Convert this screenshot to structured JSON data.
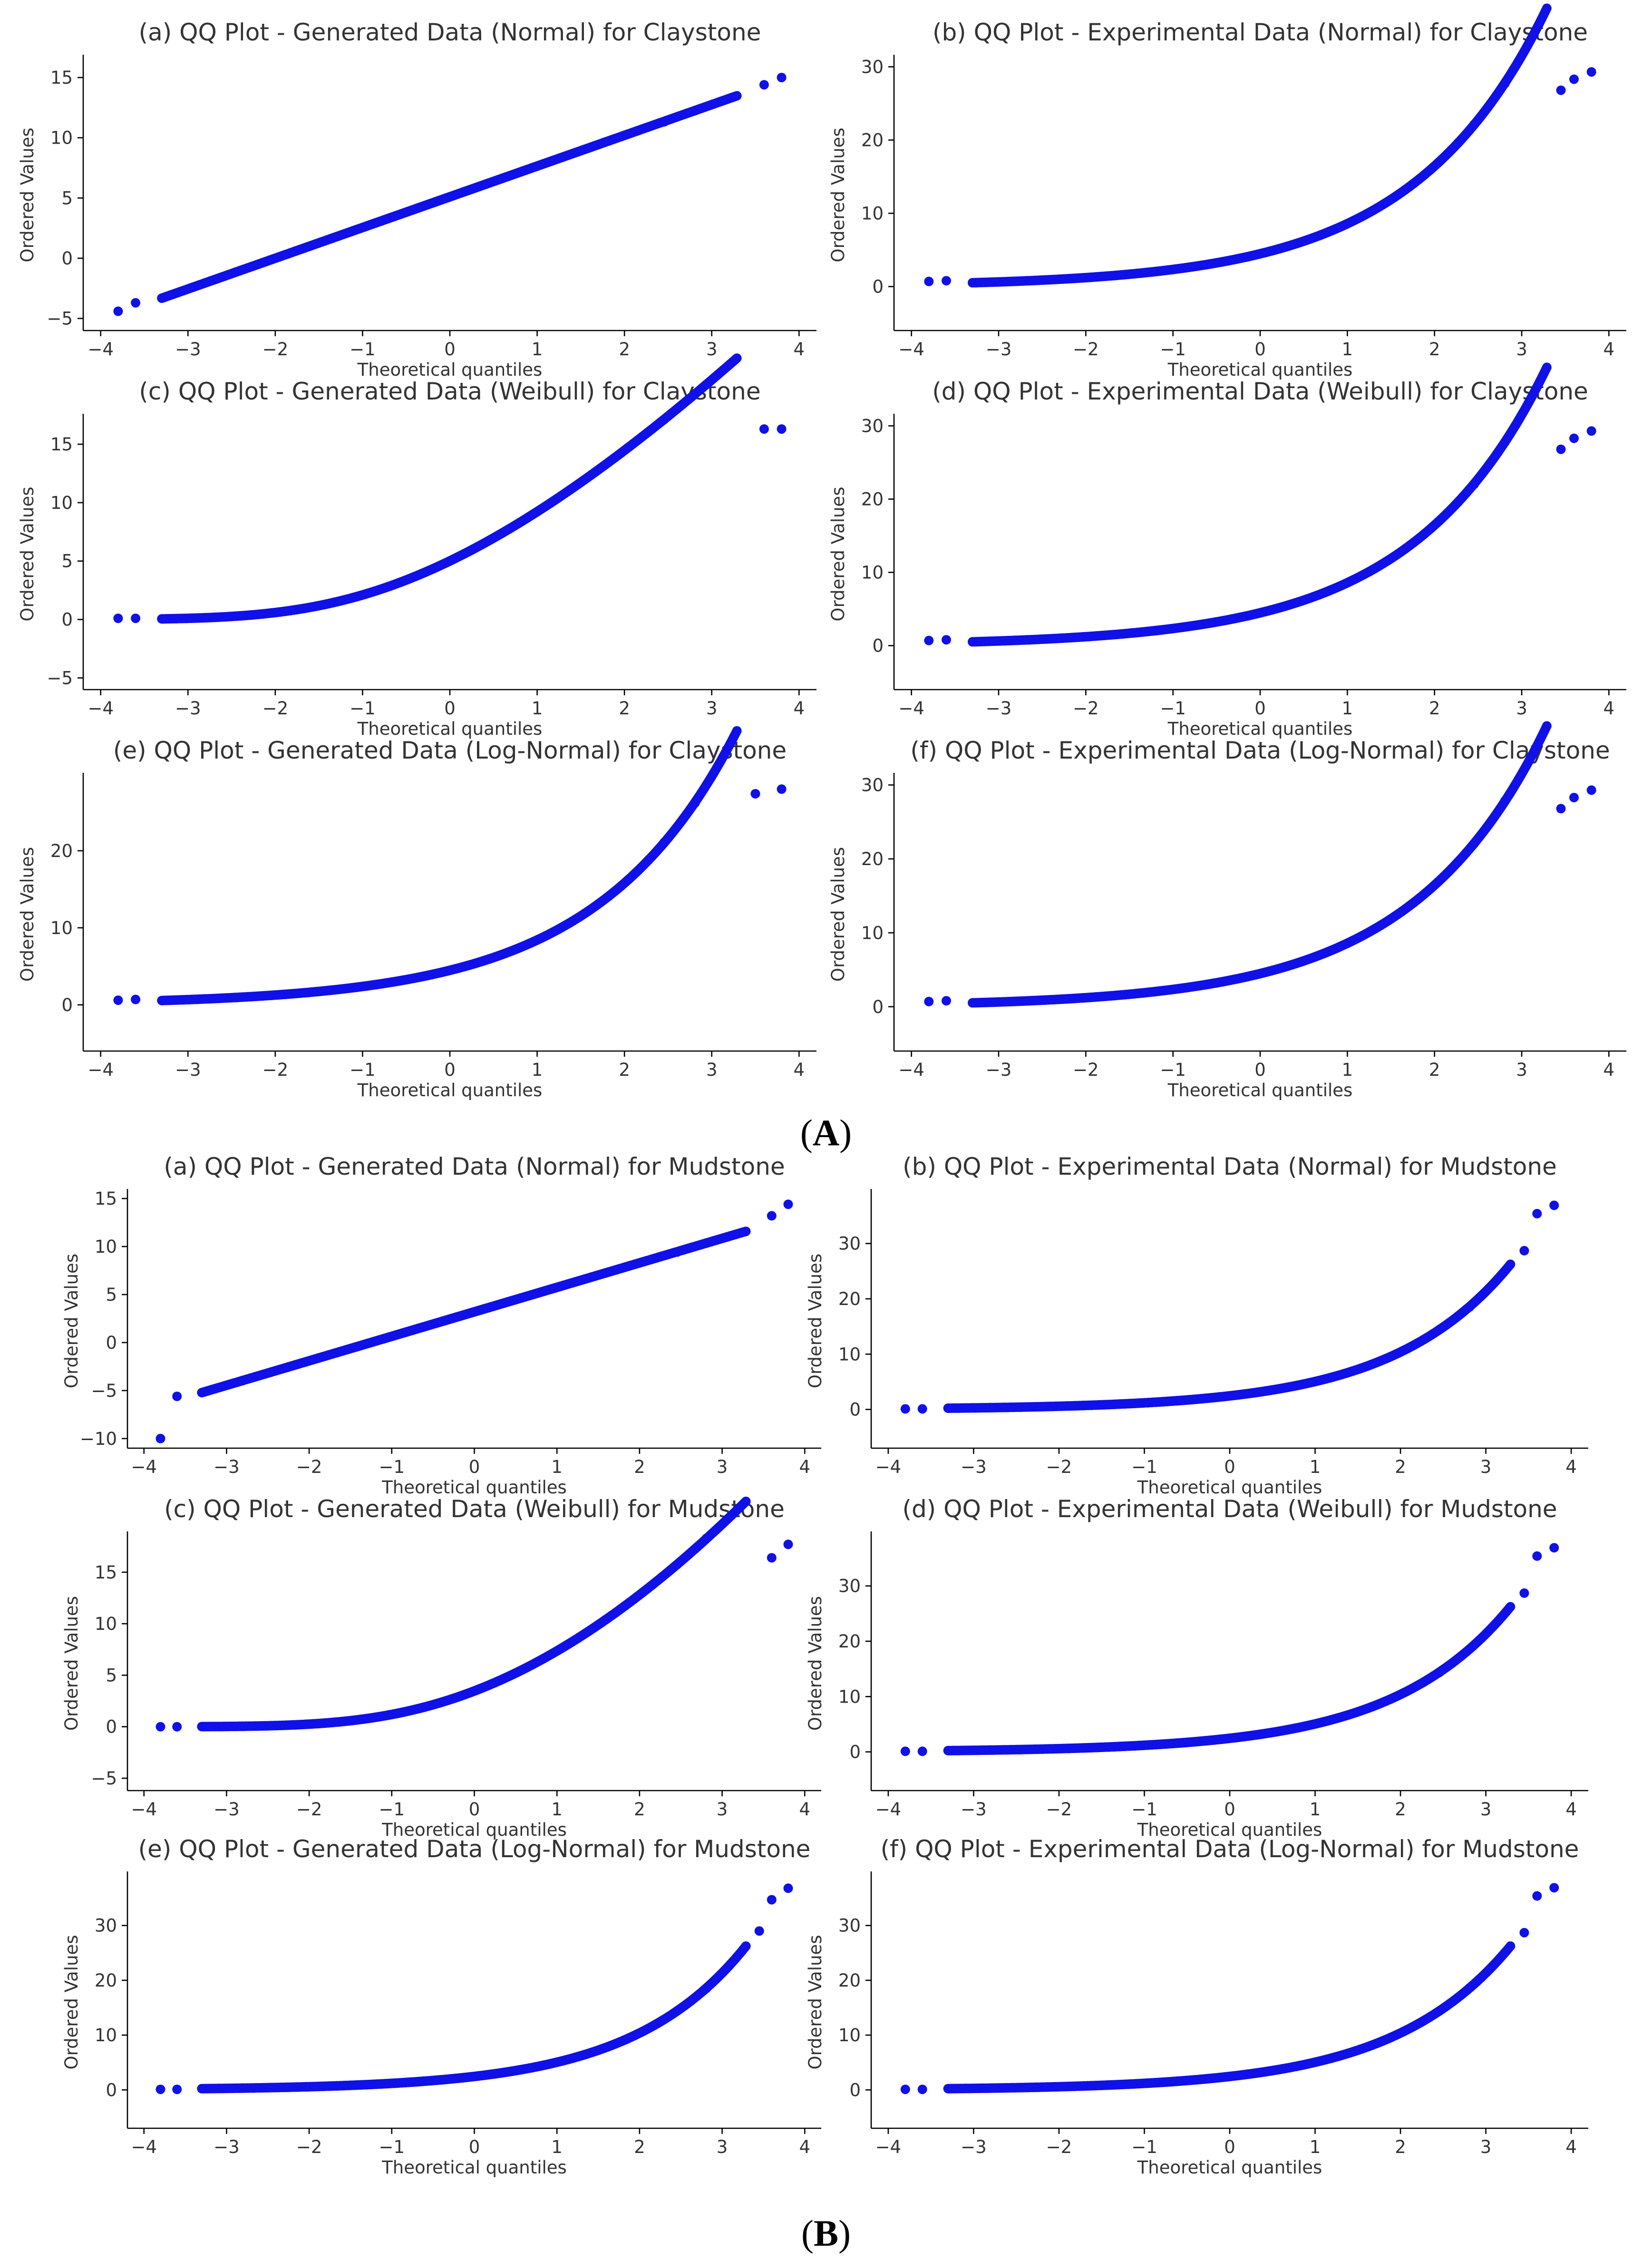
{
  "figure": {
    "section_labels": [
      {
        "id": "A",
        "text": "A"
      },
      {
        "id": "B",
        "text": "B"
      }
    ]
  },
  "chart_data": [
    {
      "type": "scatter",
      "section": "A",
      "key": "A-a",
      "dist": "normal",
      "title": "(a) QQ Plot - Generated Data (Normal) for Claystone",
      "xlabel": "Theoretical quantiles",
      "ylabel": "Ordered Values",
      "xlim": [
        -4.2,
        4.2
      ],
      "ylim": [
        -6,
        16.5
      ],
      "xticks": [
        -4,
        -3,
        -2,
        -1,
        0,
        1,
        2,
        3,
        4
      ],
      "yticks": [
        -5,
        0,
        5,
        10,
        15
      ],
      "params": {
        "mean": 5.1,
        "sd": 2.55
      },
      "outliers": [
        [
          -3.8,
          -4.4
        ],
        [
          -3.6,
          -3.7
        ],
        [
          3.6,
          14.4
        ],
        [
          3.8,
          15.0
        ]
      ],
      "series": [
        {
          "name": "Ordered Values",
          "color": "#1010e8"
        }
      ]
    },
    {
      "type": "scatter",
      "section": "A",
      "key": "A-b",
      "dist": "exp_clay",
      "title": "(b) QQ Plot - Experimental Data (Normal) for Claystone",
      "xlabel": "Theoretical quantiles",
      "ylabel": "Ordered Values",
      "xlim": [
        -4.2,
        4.2
      ],
      "ylim": [
        -6,
        31
      ],
      "xticks": [
        -4,
        -3,
        -2,
        -1,
        0,
        1,
        2,
        3,
        4
      ],
      "yticks": [
        0,
        10,
        20,
        30
      ],
      "outliers": [
        [
          -3.8,
          0.7
        ],
        [
          -3.6,
          0.8
        ],
        [
          3.45,
          26.8
        ],
        [
          3.6,
          28.3
        ],
        [
          3.8,
          29.3
        ]
      ],
      "series": [
        {
          "name": "Ordered Values",
          "color": "#1010e8"
        }
      ]
    },
    {
      "type": "scatter",
      "section": "A",
      "key": "A-c",
      "dist": "weibull_clay",
      "title": "(c) QQ Plot - Generated Data (Weibull) for Claystone",
      "xlabel": "Theoretical quantiles",
      "ylabel": "Ordered Values",
      "xlim": [
        -4.2,
        4.2
      ],
      "ylim": [
        -6,
        17.2
      ],
      "xticks": [
        -4,
        -3,
        -2,
        -1,
        0,
        1,
        2,
        3,
        4
      ],
      "yticks": [
        -5,
        0,
        5,
        10,
        15
      ],
      "outliers": [
        [
          -3.8,
          0.1
        ],
        [
          -3.6,
          0.1
        ],
        [
          3.6,
          16.3
        ],
        [
          3.8,
          16.3
        ]
      ],
      "series": [
        {
          "name": "Ordered Values",
          "color": "#1010e8"
        }
      ]
    },
    {
      "type": "scatter",
      "section": "A",
      "key": "A-d",
      "dist": "exp_clay",
      "title": "(d) QQ Plot - Experimental Data (Weibull) for Claystone",
      "xlabel": "Theoretical quantiles",
      "ylabel": "Ordered Values",
      "xlim": [
        -4.2,
        4.2
      ],
      "ylim": [
        -6,
        31
      ],
      "xticks": [
        -4,
        -3,
        -2,
        -1,
        0,
        1,
        2,
        3,
        4
      ],
      "yticks": [
        0,
        10,
        20,
        30
      ],
      "outliers": [
        [
          -3.8,
          0.7
        ],
        [
          -3.6,
          0.8
        ],
        [
          3.45,
          26.8
        ],
        [
          3.6,
          28.3
        ],
        [
          3.8,
          29.3
        ]
      ],
      "series": [
        {
          "name": "Ordered Values",
          "color": "#1010e8"
        }
      ]
    },
    {
      "type": "scatter",
      "section": "A",
      "key": "A-e",
      "dist": "lognorm_clay",
      "title": "(e) QQ Plot - Generated Data (Log-Normal) for Claystone",
      "xlabel": "Theoretical quantiles",
      "ylabel": "Ordered Values",
      "xlim": [
        -4.2,
        4.2
      ],
      "ylim": [
        -6,
        29.5
      ],
      "xticks": [
        -4,
        -3,
        -2,
        -1,
        0,
        1,
        2,
        3,
        4
      ],
      "yticks": [
        0,
        10,
        20
      ],
      "outliers": [
        [
          -3.8,
          0.6
        ],
        [
          -3.6,
          0.7
        ],
        [
          3.5,
          27.4
        ],
        [
          3.8,
          28.0
        ]
      ],
      "series": [
        {
          "name": "Ordered Values",
          "color": "#1010e8"
        }
      ]
    },
    {
      "type": "scatter",
      "section": "A",
      "key": "A-f",
      "dist": "exp_clay",
      "title": "(f) QQ Plot - Experimental Data (Log-Normal) for Claystone",
      "xlabel": "Theoretical quantiles",
      "ylabel": "Ordered Values",
      "xlim": [
        -4.2,
        4.2
      ],
      "ylim": [
        -6,
        31
      ],
      "xticks": [
        -4,
        -3,
        -2,
        -1,
        0,
        1,
        2,
        3,
        4
      ],
      "yticks": [
        0,
        10,
        20,
        30
      ],
      "outliers": [
        [
          -3.8,
          0.7
        ],
        [
          -3.6,
          0.8
        ],
        [
          3.45,
          26.8
        ],
        [
          3.6,
          28.3
        ],
        [
          3.8,
          29.3
        ]
      ],
      "series": [
        {
          "name": "Ordered Values",
          "color": "#1010e8"
        }
      ]
    },
    {
      "type": "scatter",
      "section": "B",
      "key": "B-a",
      "dist": "normal",
      "title": "(a) QQ Plot - Generated Data (Normal) for Mudstone",
      "xlabel": "Theoretical quantiles",
      "ylabel": "Ordered Values",
      "xlim": [
        -4.2,
        4.2
      ],
      "ylim": [
        -11,
        15.5
      ],
      "xticks": [
        -4,
        -3,
        -2,
        -1,
        0,
        1,
        2,
        3,
        4
      ],
      "yticks": [
        -10,
        -5,
        0,
        5,
        10,
        15
      ],
      "params": {
        "mean": 3.2,
        "sd": 2.55
      },
      "outliers": [
        [
          -3.8,
          -10.0
        ],
        [
          -3.6,
          -5.6
        ],
        [
          3.6,
          13.2
        ],
        [
          3.8,
          14.4
        ]
      ],
      "series": [
        {
          "name": "Ordered Values",
          "color": "#1010e8"
        }
      ]
    },
    {
      "type": "scatter",
      "section": "B",
      "key": "B-b",
      "dist": "exp_mud",
      "title": "(b) QQ Plot - Experimental Data (Normal) for Mudstone",
      "xlabel": "Theoretical quantiles",
      "ylabel": "Ordered Values",
      "xlim": [
        -4.2,
        4.2
      ],
      "ylim": [
        -7,
        39
      ],
      "xticks": [
        -4,
        -3,
        -2,
        -1,
        0,
        1,
        2,
        3,
        4
      ],
      "yticks": [
        0,
        10,
        20,
        30
      ],
      "outliers": [
        [
          -3.8,
          0.1
        ],
        [
          -3.6,
          0.1
        ],
        [
          3.45,
          28.7
        ],
        [
          3.6,
          35.4
        ],
        [
          3.8,
          36.9
        ]
      ],
      "series": [
        {
          "name": "Ordered Values",
          "color": "#1010e8"
        }
      ]
    },
    {
      "type": "scatter",
      "section": "B",
      "key": "B-c",
      "dist": "weibull_mud",
      "title": "(c) QQ Plot - Generated Data (Weibull) for Mudstone",
      "xlabel": "Theoretical quantiles",
      "ylabel": "Ordered Values",
      "xlim": [
        -4.2,
        4.2
      ],
      "ylim": [
        -6.2,
        18.5
      ],
      "xticks": [
        -4,
        -3,
        -2,
        -1,
        0,
        1,
        2,
        3,
        4
      ],
      "yticks": [
        -5,
        0,
        5,
        10,
        15
      ],
      "outliers": [
        [
          -3.8,
          0.0
        ],
        [
          -3.6,
          0.0
        ],
        [
          3.6,
          16.4
        ],
        [
          3.8,
          17.7
        ]
      ],
      "series": [
        {
          "name": "Ordered Values",
          "color": "#1010e8"
        }
      ]
    },
    {
      "type": "scatter",
      "section": "B",
      "key": "B-d",
      "dist": "exp_mud",
      "title": "(d) QQ Plot - Experimental Data (Weibull) for Mudstone",
      "xlabel": "Theoretical quantiles",
      "ylabel": "Ordered Values",
      "xlim": [
        -4.2,
        4.2
      ],
      "ylim": [
        -7,
        39
      ],
      "xticks": [
        -4,
        -3,
        -2,
        -1,
        0,
        1,
        2,
        3,
        4
      ],
      "yticks": [
        0,
        10,
        20,
        30
      ],
      "outliers": [
        [
          -3.8,
          0.1
        ],
        [
          -3.6,
          0.1
        ],
        [
          3.45,
          28.7
        ],
        [
          3.6,
          35.4
        ],
        [
          3.8,
          36.9
        ]
      ],
      "series": [
        {
          "name": "Ordered Values",
          "color": "#1010e8"
        }
      ]
    },
    {
      "type": "scatter",
      "section": "B",
      "key": "B-e",
      "dist": "exp_mud",
      "title": "(e) QQ Plot - Generated Data (Log-Normal) for Mudstone",
      "xlabel": "Theoretical quantiles",
      "ylabel": "Ordered Values",
      "xlim": [
        -4.2,
        4.2
      ],
      "ylim": [
        -7,
        39
      ],
      "xticks": [
        -4,
        -3,
        -2,
        -1,
        0,
        1,
        2,
        3,
        4
      ],
      "yticks": [
        0,
        10,
        20,
        30
      ],
      "outliers": [
        [
          -3.8,
          0.1
        ],
        [
          -3.6,
          0.1
        ],
        [
          3.45,
          29.0
        ],
        [
          3.6,
          34.7
        ],
        [
          3.8,
          36.8
        ]
      ],
      "series": [
        {
          "name": "Ordered Values",
          "color": "#1010e8"
        }
      ]
    },
    {
      "type": "scatter",
      "section": "B",
      "key": "B-f",
      "dist": "exp_mud",
      "title": "(f) QQ Plot - Experimental Data (Log-Normal) for Mudstone",
      "xlabel": "Theoretical quantiles",
      "ylabel": "Ordered Values",
      "xlim": [
        -4.2,
        4.2
      ],
      "ylim": [
        -7,
        39
      ],
      "xticks": [
        -4,
        -3,
        -2,
        -1,
        0,
        1,
        2,
        3,
        4
      ],
      "yticks": [
        0,
        10,
        20,
        30
      ],
      "outliers": [
        [
          -3.8,
          0.1
        ],
        [
          -3.6,
          0.1
        ],
        [
          3.45,
          28.7
        ],
        [
          3.6,
          35.4
        ],
        [
          3.8,
          36.9
        ]
      ],
      "series": [
        {
          "name": "Ordered Values",
          "color": "#1010e8"
        }
      ]
    }
  ]
}
